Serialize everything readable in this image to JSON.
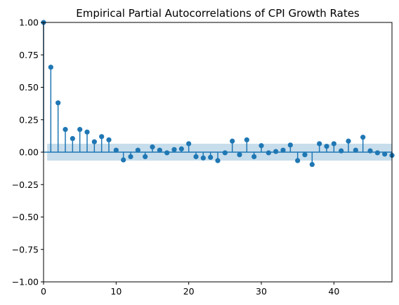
{
  "chart_data": {
    "type": "stem",
    "title": "Empirical Partial Autocorrelations of CPI Growth Rates",
    "xlabel": "",
    "ylabel": "",
    "xlim": [
      0,
      48
    ],
    "ylim": [
      -1.0,
      1.0
    ],
    "x_ticks": [
      0,
      10,
      20,
      30,
      40
    ],
    "x_tick_labels": [
      "0",
      "10",
      "20",
      "30",
      "40"
    ],
    "y_ticks": [
      -1.0,
      -0.75,
      -0.5,
      -0.25,
      0.0,
      0.25,
      0.5,
      0.75,
      1.0
    ],
    "y_tick_labels": [
      "−1.00",
      "−0.75",
      "−0.50",
      "−0.25",
      "0.00",
      "0.25",
      "0.50",
      "0.75",
      "1.00"
    ],
    "grid": false,
    "confidence_band": [
      -0.065,
      0.065
    ],
    "colors": {
      "series": "#1f77b4",
      "band": "#1f77b4"
    },
    "lags": [
      0,
      1,
      2,
      3,
      4,
      5,
      6,
      7,
      8,
      9,
      10,
      11,
      12,
      13,
      14,
      15,
      16,
      17,
      18,
      19,
      20,
      21,
      22,
      23,
      24,
      25,
      26,
      27,
      28,
      29,
      30,
      31,
      32,
      33,
      34,
      35,
      36,
      37,
      38,
      39,
      40,
      41,
      42,
      43,
      44,
      45,
      46,
      47,
      48
    ],
    "values": [
      1.0,
      0.655,
      0.38,
      0.175,
      0.105,
      0.175,
      0.155,
      0.08,
      0.12,
      0.095,
      0.015,
      -0.06,
      -0.035,
      0.015,
      -0.035,
      0.04,
      0.015,
      -0.005,
      0.02,
      0.025,
      0.065,
      -0.035,
      -0.045,
      -0.04,
      -0.065,
      -0.005,
      0.085,
      -0.02,
      0.095,
      -0.035,
      0.05,
      -0.005,
      0.005,
      0.015,
      0.055,
      -0.065,
      -0.02,
      -0.095,
      0.065,
      0.045,
      0.065,
      0.01,
      0.085,
      0.015,
      0.115,
      0.01,
      -0.005,
      -0.015,
      -0.025
    ]
  }
}
